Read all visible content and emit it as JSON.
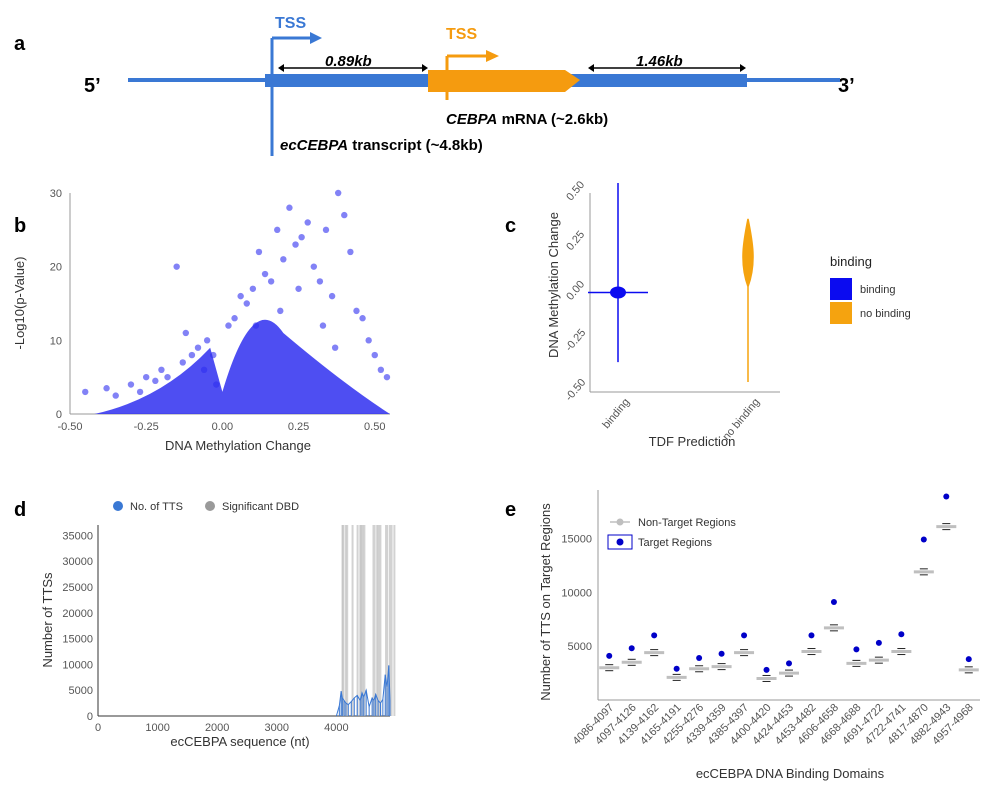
{
  "panel_labels": [
    "a",
    "b",
    "c",
    "d",
    "e"
  ],
  "colors": {
    "blue": "#3a78d4",
    "orange": "#f59b0f",
    "scatter": "#2f2ff0",
    "binding": "#0b0bf0",
    "no_binding": "#f5a30f",
    "gray": "#bfbfbf",
    "dark_blue": "#0000c8"
  },
  "diagram": {
    "five_prime": "5’",
    "three_prime": "3’",
    "tss_blue": "TSS",
    "tss_orange": "TSS",
    "dist_left": "0.89kb",
    "dist_right": "1.46kb",
    "mrna_gene": "CEBPA",
    "mrna_rest": " mRNA (~2.6kb)",
    "transcript_gene": "ecCEBPA",
    "transcript_rest": " transcript (~4.8kb)"
  },
  "chart_data": [
    {
      "panel": "b",
      "type": "scatter",
      "xlabel": "DNA Methylation Change",
      "ylabel": "-Log10(p-Value)",
      "xlim": [
        -0.5,
        0.55
      ],
      "ylim": [
        0,
        30
      ],
      "xticks": [
        "-0.50",
        "-0.25",
        "0.00",
        "0.25",
        "0.50"
      ],
      "yticks": [
        "0",
        "10",
        "20",
        "30"
      ],
      "points_x": [
        -0.45,
        -0.38,
        -0.35,
        -0.3,
        -0.27,
        -0.25,
        -0.22,
        -0.2,
        -0.18,
        -0.15,
        -0.13,
        -0.1,
        -0.08,
        -0.06,
        -0.05,
        -0.03,
        -0.02,
        0.02,
        0.04,
        0.06,
        0.08,
        0.1,
        0.12,
        0.14,
        0.16,
        0.18,
        0.2,
        0.22,
        0.24,
        0.26,
        0.28,
        0.3,
        0.32,
        0.34,
        0.36,
        0.38,
        0.4,
        0.42,
        0.44,
        0.46,
        0.48,
        0.5,
        0.52,
        0.54,
        -0.12,
        0.11,
        0.19,
        0.25,
        0.33,
        0.37
      ],
      "points_y": [
        3,
        3.5,
        2.5,
        4,
        3,
        5,
        4.5,
        6,
        5,
        20,
        7,
        8,
        9,
        6,
        10,
        8,
        4,
        12,
        13,
        16,
        15,
        17,
        22,
        19,
        18,
        25,
        21,
        28,
        23,
        24,
        26,
        20,
        18,
        25,
        16,
        30,
        27,
        22,
        14,
        13,
        10,
        8,
        6,
        5,
        11,
        12,
        14,
        17,
        12,
        9
      ]
    },
    {
      "panel": "c",
      "type": "violin",
      "title": "binding",
      "xlabel": "TDF Prediction",
      "ylabel": "DNA Methylation Change",
      "categories": [
        "binding",
        "no binding"
      ],
      "ylim": [
        -0.5,
        0.5
      ],
      "yticks": [
        "-0.50",
        "-0.25",
        "0.00",
        "0.25",
        "0.50"
      ],
      "series": [
        {
          "name": "binding",
          "range": [
            -0.35,
            0.55
          ],
          "center": 0.0
        },
        {
          "name": "no binding",
          "range": [
            -0.45,
            0.37
          ],
          "center": 0.1
        }
      ]
    },
    {
      "panel": "d",
      "type": "bar",
      "xlabel": "ecCEBPA sequence (nt)",
      "ylabel": "Number of TTSs",
      "xlim": [
        0,
        4900
      ],
      "ylim": [
        0,
        37000
      ],
      "xticks": [
        "0",
        "1000",
        "2000",
        "3000",
        "4000"
      ],
      "yticks": [
        "0",
        "5000",
        "10000",
        "15000",
        "20000",
        "25000",
        "30000",
        "35000"
      ],
      "series": [
        {
          "name": "No. of TTS"
        },
        {
          "name": "Significant DBD"
        }
      ],
      "significant_dbd_ranges": [
        [
          4086,
          4097
        ],
        [
          4097,
          4126
        ],
        [
          4139,
          4162
        ],
        [
          4165,
          4191
        ],
        [
          4255,
          4276
        ],
        [
          4339,
          4359
        ],
        [
          4385,
          4397
        ],
        [
          4400,
          4420
        ],
        [
          4424,
          4453
        ],
        [
          4453,
          4482
        ],
        [
          4606,
          4658
        ],
        [
          4668,
          4688
        ],
        [
          4691,
          4722
        ],
        [
          4722,
          4741
        ],
        [
          4817,
          4870
        ],
        [
          4882,
          4943
        ],
        [
          4957,
          4968
        ]
      ],
      "tts_x": [
        4050,
        4080,
        4100,
        4130,
        4160,
        4200,
        4250,
        4300,
        4350,
        4400,
        4430,
        4460,
        4500,
        4550,
        4600,
        4630,
        4660,
        4700,
        4740,
        4780,
        4820,
        4850,
        4880,
        4900
      ],
      "tts_y": [
        2000,
        4800,
        3500,
        3000,
        2500,
        2200,
        2800,
        3500,
        4000,
        3000,
        4500,
        3700,
        5000,
        1800,
        3500,
        3000,
        4200,
        3000,
        2500,
        3200,
        8000,
        5500,
        9800,
        3000
      ]
    },
    {
      "panel": "e",
      "type": "scatter",
      "xlabel": "ecCEBPA DNA Binding Domains",
      "ylabel": "Number of TTS on Target Regions",
      "ylim": [
        0,
        19500
      ],
      "yticks": [
        "5000",
        "10000",
        "15000"
      ],
      "categories": [
        "4086-4097",
        "4097-4126",
        "4139-4162",
        "4165-4191",
        "4255-4276",
        "4339-4359",
        "4385-4397",
        "4400-4420",
        "4424-4453",
        "4453-4482",
        "4606-4658",
        "4668-4688",
        "4691-4722",
        "4722-4741",
        "4817-4870",
        "4882-4943",
        "4957-4968"
      ],
      "series": [
        {
          "name": "Non-Target Regions",
          "values": [
            3000,
            3500,
            4400,
            2100,
            2900,
            3100,
            4400,
            2000,
            2500,
            4500,
            6700,
            3400,
            3700,
            4500,
            11900,
            16100,
            2800
          ]
        },
        {
          "name": "Target Regions",
          "values": [
            4100,
            4800,
            6000,
            2900,
            3900,
            4300,
            6000,
            2800,
            3400,
            6000,
            9100,
            4700,
            5300,
            6100,
            14900,
            18900,
            3800
          ]
        }
      ]
    }
  ]
}
